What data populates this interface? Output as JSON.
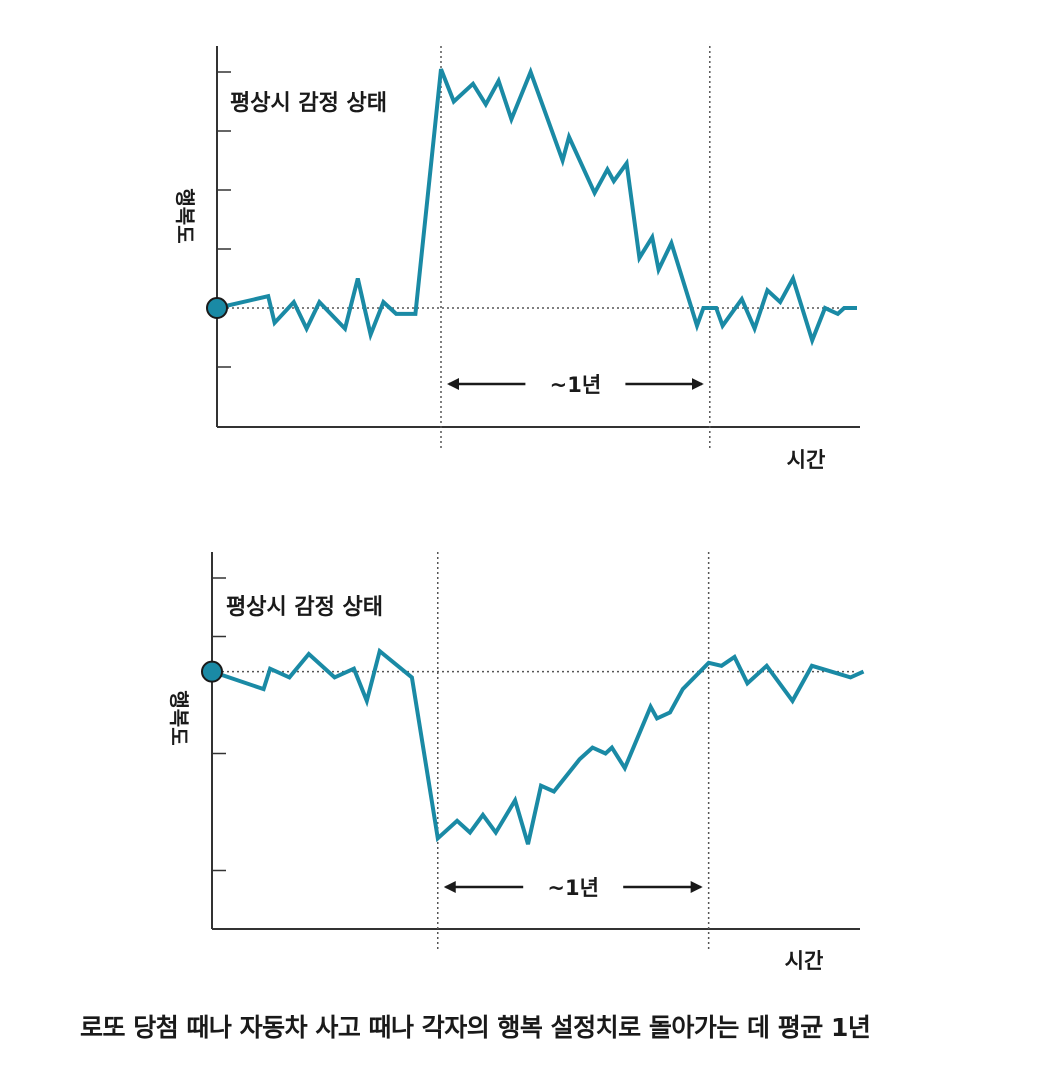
{
  "caption": "로또 당첨 때나 자동차 사고 때나 각자의 행복 설정치로 돌아가는 데 평균 1년",
  "colors": {
    "line": "#1a8aa5",
    "axis": "#333333",
    "marker": "#1a8aa5"
  },
  "chart_data": [
    {
      "type": "line",
      "title": "",
      "ylabel": "행복도",
      "xlabel": "시간",
      "baseline_label": "평상시 감정 상태",
      "span_label": "~1년",
      "baseline": 0,
      "ylim": [
        -2,
        4
      ],
      "xlim": [
        0,
        100
      ],
      "event_start_x": 35,
      "event_end_x": 77,
      "y_ticks": [
        -1,
        1,
        2,
        3,
        4
      ],
      "grid": false,
      "series": [
        {
          "points": [
            [
              0,
              0
            ],
            [
              8,
              0.2
            ],
            [
              9,
              -0.25
            ],
            [
              12,
              0.1
            ],
            [
              14,
              -0.35
            ],
            [
              16,
              0.1
            ],
            [
              20,
              -0.35
            ],
            [
              22,
              0.5
            ],
            [
              24,
              -0.45
            ],
            [
              26,
              0.1
            ],
            [
              28,
              -0.1
            ],
            [
              31,
              -0.1
            ],
            [
              35,
              4.05
            ],
            [
              37,
              3.5
            ],
            [
              40,
              3.8
            ],
            [
              42,
              3.45
            ],
            [
              44,
              3.85
            ],
            [
              46,
              3.2
            ],
            [
              49,
              4.0
            ],
            [
              54,
              2.5
            ],
            [
              55,
              2.9
            ],
            [
              59,
              1.95
            ],
            [
              61,
              2.35
            ],
            [
              62,
              2.15
            ],
            [
              64,
              2.45
            ],
            [
              66,
              0.85
            ],
            [
              68,
              1.2
            ],
            [
              69,
              0.65
            ],
            [
              71,
              1.1
            ],
            [
              75,
              -0.3
            ],
            [
              76,
              0.0
            ],
            [
              78,
              0.0
            ],
            [
              79,
              -0.3
            ],
            [
              82,
              0.15
            ],
            [
              84,
              -0.35
            ],
            [
              86,
              0.3
            ],
            [
              88,
              0.1
            ],
            [
              90,
              0.5
            ],
            [
              93,
              -0.55
            ],
            [
              95,
              0.0
            ],
            [
              97,
              -0.1
            ],
            [
              98,
              0.0
            ],
            [
              100,
              0.0
            ]
          ]
        }
      ]
    },
    {
      "type": "line",
      "title": "",
      "ylabel": "행복도",
      "xlabel": "시간",
      "baseline_label": "평상시 감정 상태",
      "span_label": "~1년",
      "baseline": 0,
      "ylim": [
        -4.4,
        1.6
      ],
      "xlim": [
        0,
        100
      ],
      "event_start_x": 35,
      "event_end_x": 77,
      "y_ticks": [
        -3.4,
        -1.4,
        0.6,
        1.6
      ],
      "grid": false,
      "series": [
        {
          "points": [
            [
              0,
              0
            ],
            [
              8,
              -0.3
            ],
            [
              9,
              0.05
            ],
            [
              12,
              -0.1
            ],
            [
              15,
              0.3
            ],
            [
              19,
              -0.1
            ],
            [
              22,
              0.05
            ],
            [
              24,
              -0.5
            ],
            [
              26,
              0.35
            ],
            [
              31,
              -0.1
            ],
            [
              35,
              -2.85
            ],
            [
              38,
              -2.55
            ],
            [
              40,
              -2.75
            ],
            [
              42,
              -2.45
            ],
            [
              44,
              -2.75
            ],
            [
              47,
              -2.2
            ],
            [
              49,
              -2.95
            ],
            [
              51,
              -1.95
            ],
            [
              53,
              -2.05
            ],
            [
              57,
              -1.5
            ],
            [
              59,
              -1.3
            ],
            [
              61,
              -1.4
            ],
            [
              62,
              -1.3
            ],
            [
              64,
              -1.65
            ],
            [
              68,
              -0.6
            ],
            [
              69,
              -0.8
            ],
            [
              71,
              -0.7
            ],
            [
              73,
              -0.3
            ],
            [
              77,
              0.15
            ],
            [
              79,
              0.1
            ],
            [
              81,
              0.25
            ],
            [
              83,
              -0.2
            ],
            [
              86,
              0.1
            ],
            [
              90,
              -0.5
            ],
            [
              93,
              0.1
            ],
            [
              96,
              0.0
            ],
            [
              99,
              -0.1
            ],
            [
              101,
              0.0
            ]
          ]
        }
      ]
    }
  ]
}
